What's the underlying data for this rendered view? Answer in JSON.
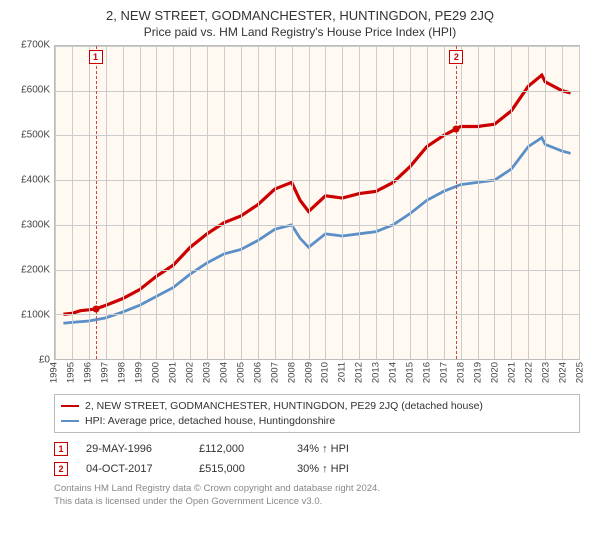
{
  "title_main": "2, NEW STREET, GODMANCHESTER, HUNTINGDON, PE29 2JQ",
  "title_sub": "Price paid vs. HM Land Registry's House Price Index (HPI)",
  "chart": {
    "type": "line",
    "background_color": "#fff9f2",
    "grid_color": "#cccccc",
    "border_color": "#bbbbbb",
    "ylim": [
      0,
      700000
    ],
    "ytick_step": 100000,
    "ytick_labels": [
      "£0",
      "£100K",
      "£200K",
      "£300K",
      "£400K",
      "£500K",
      "£600K",
      "£700K"
    ],
    "xlim": [
      1994,
      2025
    ],
    "xtick_step": 1,
    "xtick_labels": [
      "1994",
      "1995",
      "1996",
      "1997",
      "1998",
      "1999",
      "2000",
      "2001",
      "2002",
      "2003",
      "2004",
      "2005",
      "2006",
      "2007",
      "2008",
      "2009",
      "2010",
      "2011",
      "2012",
      "2013",
      "2014",
      "2015",
      "2016",
      "2017",
      "2018",
      "2019",
      "2020",
      "2021",
      "2022",
      "2023",
      "2024",
      "2025"
    ],
    "label_fontsize": 10,
    "tick_fontsize": 9.5,
    "series": [
      {
        "name": "property_price",
        "label": "2, NEW STREET, GODMANCHESTER, HUNTINGDON, PE29 2JQ (detached house)",
        "color": "#cc0000",
        "line_width": 1.6,
        "x": [
          1994.5,
          1995,
          1995.5,
          1996,
          1996.4,
          1997,
          1998,
          1999,
          2000,
          2001,
          2002,
          2003,
          2004,
          2005,
          2006,
          2007,
          2008,
          2008.5,
          2009,
          2010,
          2011,
          2012,
          2013,
          2014,
          2015,
          2016,
          2017,
          2017.75,
          2018,
          2019,
          2020,
          2021,
          2022,
          2022.8,
          2023,
          2024,
          2024.5
        ],
        "y": [
          100000,
          102000,
          108000,
          110000,
          112000,
          120000,
          135000,
          155000,
          185000,
          210000,
          250000,
          280000,
          305000,
          320000,
          345000,
          380000,
          395000,
          355000,
          330000,
          365000,
          360000,
          370000,
          375000,
          395000,
          430000,
          475000,
          500000,
          515000,
          520000,
          520000,
          525000,
          555000,
          610000,
          635000,
          620000,
          600000,
          595000
        ]
      },
      {
        "name": "hpi",
        "label": "HPI: Average price, detached house, Huntingdonshire",
        "color": "#5b8fc7",
        "line_width": 1.4,
        "x": [
          1994.5,
          1995,
          1996,
          1997,
          1998,
          1999,
          2000,
          2001,
          2002,
          2003,
          2004,
          2005,
          2006,
          2007,
          2008,
          2008.5,
          2009,
          2010,
          2011,
          2012,
          2013,
          2014,
          2015,
          2016,
          2017,
          2018,
          2019,
          2020,
          2021,
          2022,
          2022.8,
          2023,
          2024,
          2024.5
        ],
        "y": [
          80000,
          82000,
          85000,
          92000,
          105000,
          120000,
          140000,
          160000,
          190000,
          215000,
          235000,
          245000,
          265000,
          290000,
          300000,
          270000,
          250000,
          280000,
          275000,
          280000,
          285000,
          300000,
          325000,
          355000,
          375000,
          390000,
          395000,
          400000,
          425000,
          475000,
          495000,
          480000,
          465000,
          460000
        ]
      }
    ],
    "markers": [
      {
        "id": "1",
        "x": 1996.4,
        "y": 112000,
        "line_color": "#cc4444",
        "dot_color": "#cc0000"
      },
      {
        "id": "2",
        "x": 2017.75,
        "y": 515000,
        "line_color": "#cc4444",
        "dot_color": "#cc0000"
      }
    ]
  },
  "legend": {
    "items": [
      {
        "color": "#cc0000",
        "label": "2, NEW STREET, GODMANCHESTER, HUNTINGDON, PE29 2JQ (detached house)"
      },
      {
        "color": "#5b8fc7",
        "label": "HPI: Average price, detached house, Huntingdonshire"
      }
    ]
  },
  "events": [
    {
      "id": "1",
      "date": "29-MAY-1996",
      "price": "£112,000",
      "delta": "34% ↑ HPI"
    },
    {
      "id": "2",
      "date": "04-OCT-2017",
      "price": "£515,000",
      "delta": "30% ↑ HPI"
    }
  ],
  "footnote_line1": "Contains HM Land Registry data © Crown copyright and database right 2024.",
  "footnote_line2": "This data is licensed under the Open Government Licence v3.0."
}
